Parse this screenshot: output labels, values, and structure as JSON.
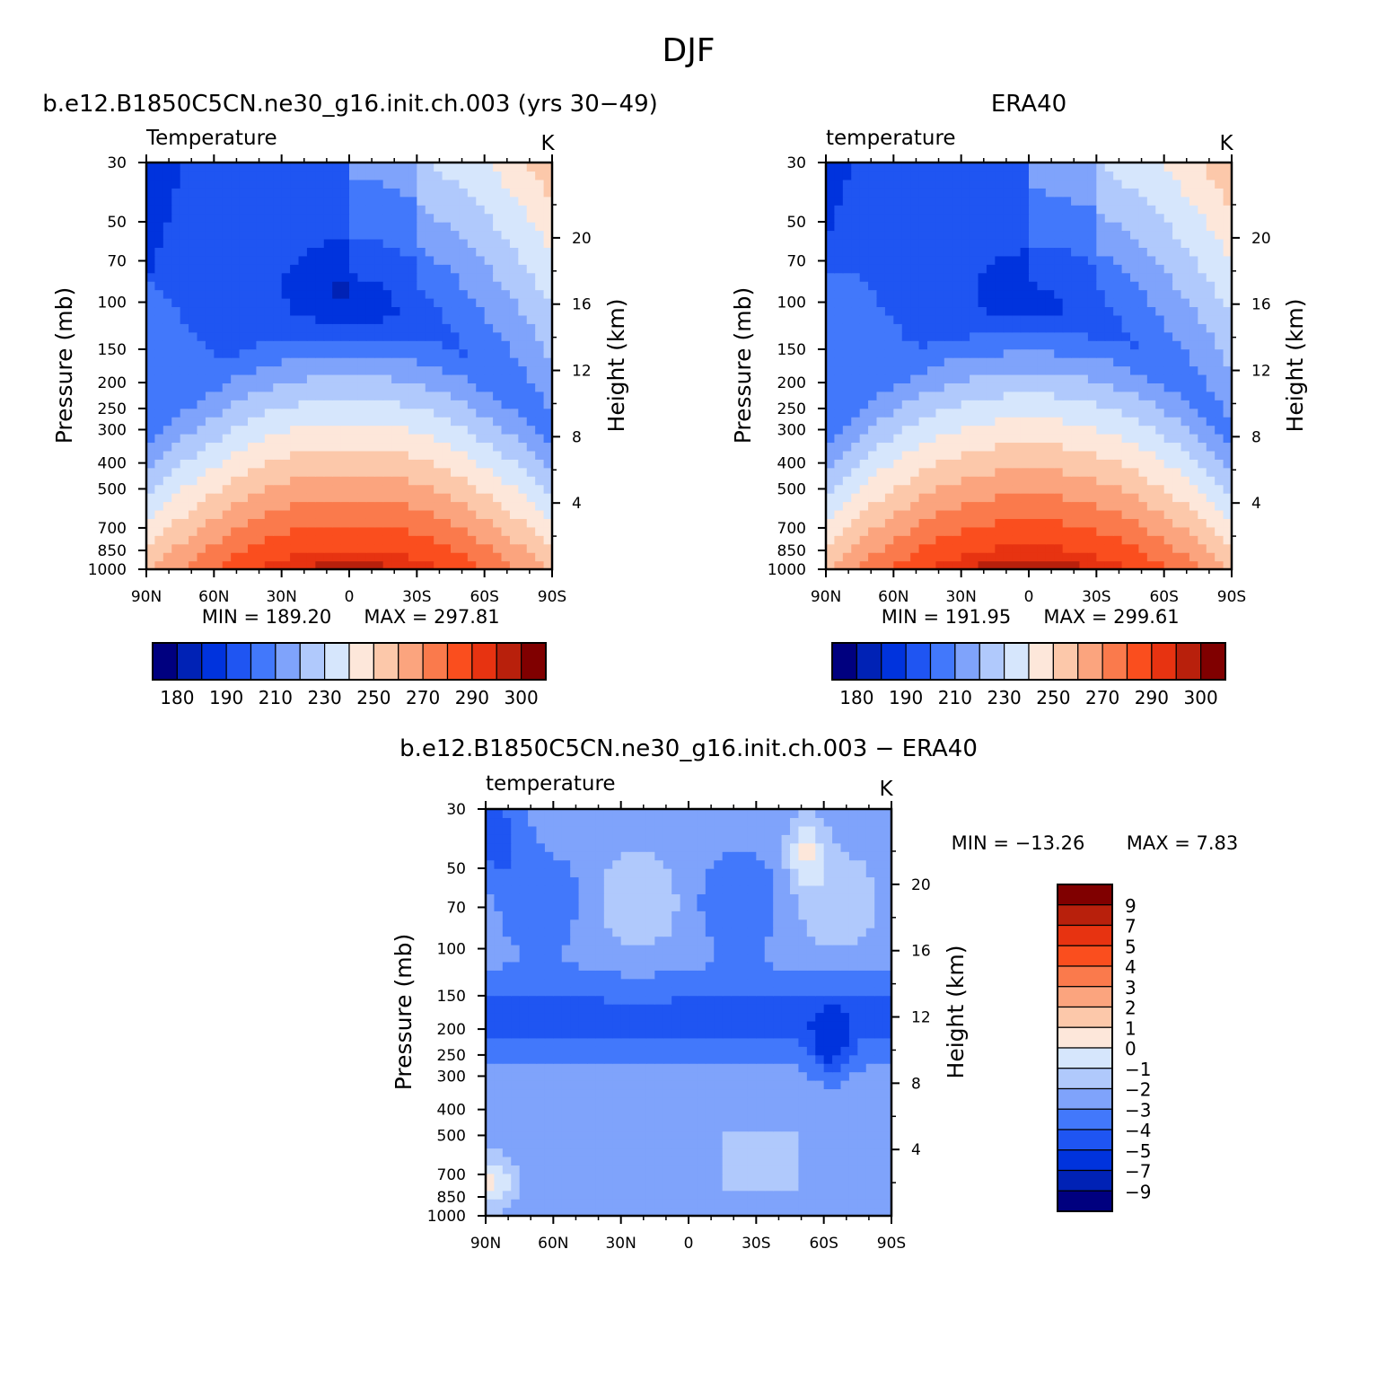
{
  "figure_title": "DJF",
  "colors": {
    "temp_scale": [
      "#00007f",
      "#0022b5",
      "#0033dd",
      "#1f55f2",
      "#4278fb",
      "#7fa3fb",
      "#b0c9fc",
      "#d6e6fc",
      "#fde7da",
      "#fcc8aa",
      "#fba47e",
      "#fa7a4c",
      "#fa4e1e",
      "#e73311",
      "#b8200c",
      "#800000"
    ],
    "diff_scale": [
      "#00007f",
      "#0022b5",
      "#0033dd",
      "#1f55f2",
      "#4278fb",
      "#7fa3fb",
      "#b0c9fc",
      "#d6e6fc",
      "#fde7da",
      "#fcc8aa",
      "#fba47e",
      "#fa7a4c",
      "#fa4e1e",
      "#e73311",
      "#b8200c",
      "#800000"
    ]
  },
  "chart_data": [
    {
      "type": "heatmap",
      "title": "b.e12.B1850C5CN.ne30_g16.init.ch.003 (yrs 30−49)",
      "subtitle": "Temperature",
      "units": "K",
      "ylabel": "Pressure (mb)",
      "ylabel_right": "Height (km)",
      "x_ticks": [
        "90N",
        "60N",
        "30N",
        "0",
        "30S",
        "60S",
        "90S"
      ],
      "x_values": [
        90,
        60,
        30,
        0,
        -30,
        -60,
        -90
      ],
      "y_ticks": [
        30,
        50,
        70,
        100,
        150,
        200,
        250,
        300,
        400,
        500,
        700,
        850,
        1000
      ],
      "y_right_ticks": [
        4,
        8,
        12,
        16,
        20
      ],
      "ylim": [
        1000,
        30
      ],
      "ylog": true,
      "min_label": "MIN = 189.20",
      "max_label": "MAX = 297.81",
      "colorbar_labels": [
        "180",
        "190",
        "210",
        "230",
        "250",
        "270",
        "290",
        "300"
      ],
      "colorbar_levels": [
        180,
        185,
        190,
        200,
        210,
        220,
        230,
        240,
        250,
        260,
        270,
        280,
        290,
        295,
        300
      ],
      "colorbar_orientation": "horizontal"
    },
    {
      "type": "heatmap",
      "title": "ERA40",
      "subtitle": "temperature",
      "units": "K",
      "ylabel": "Pressure (mb)",
      "ylabel_right": "Height (km)",
      "x_ticks": [
        "90N",
        "60N",
        "30N",
        "0",
        "30S",
        "60S",
        "90S"
      ],
      "x_values": [
        90,
        60,
        30,
        0,
        -30,
        -60,
        -90
      ],
      "y_ticks": [
        30,
        50,
        70,
        100,
        150,
        200,
        250,
        300,
        400,
        500,
        700,
        850,
        1000
      ],
      "y_right_ticks": [
        4,
        8,
        12,
        16,
        20
      ],
      "ylim": [
        1000,
        30
      ],
      "ylog": true,
      "min_label": "MIN = 191.95",
      "max_label": "MAX = 299.61",
      "colorbar_labels": [
        "180",
        "190",
        "210",
        "230",
        "250",
        "270",
        "290",
        "300"
      ],
      "colorbar_levels": [
        180,
        185,
        190,
        200,
        210,
        220,
        230,
        240,
        250,
        260,
        270,
        280,
        290,
        295,
        300
      ],
      "colorbar_orientation": "horizontal"
    },
    {
      "type": "heatmap",
      "title": "b.e12.B1850C5CN.ne30_g16.init.ch.003 − ERA40",
      "subtitle": "temperature",
      "units": "K",
      "ylabel": "Pressure (mb)",
      "ylabel_right": "Height (km)",
      "x_ticks": [
        "90N",
        "60N",
        "30N",
        "0",
        "30S",
        "60S",
        "90S"
      ],
      "x_values": [
        90,
        60,
        30,
        0,
        -30,
        -60,
        -90
      ],
      "y_ticks": [
        30,
        50,
        70,
        100,
        150,
        200,
        250,
        300,
        400,
        500,
        700,
        850,
        1000
      ],
      "y_right_ticks": [
        4,
        8,
        12,
        16,
        20
      ],
      "ylim": [
        1000,
        30
      ],
      "ylog": true,
      "min_label": "MIN = −13.26",
      "max_label": "MAX =    7.83",
      "colorbar_labels": [
        "9",
        "7",
        "5",
        "4",
        "3",
        "2",
        "1",
        "0",
        "−1",
        "−2",
        "−3",
        "−4",
        "−5",
        "−7",
        "−9"
      ],
      "colorbar_levels": [
        -9,
        -7,
        -5,
        -4,
        -3,
        -2,
        -1,
        0,
        1,
        2,
        3,
        4,
        5,
        7,
        9
      ],
      "colorbar_orientation": "vertical"
    }
  ]
}
